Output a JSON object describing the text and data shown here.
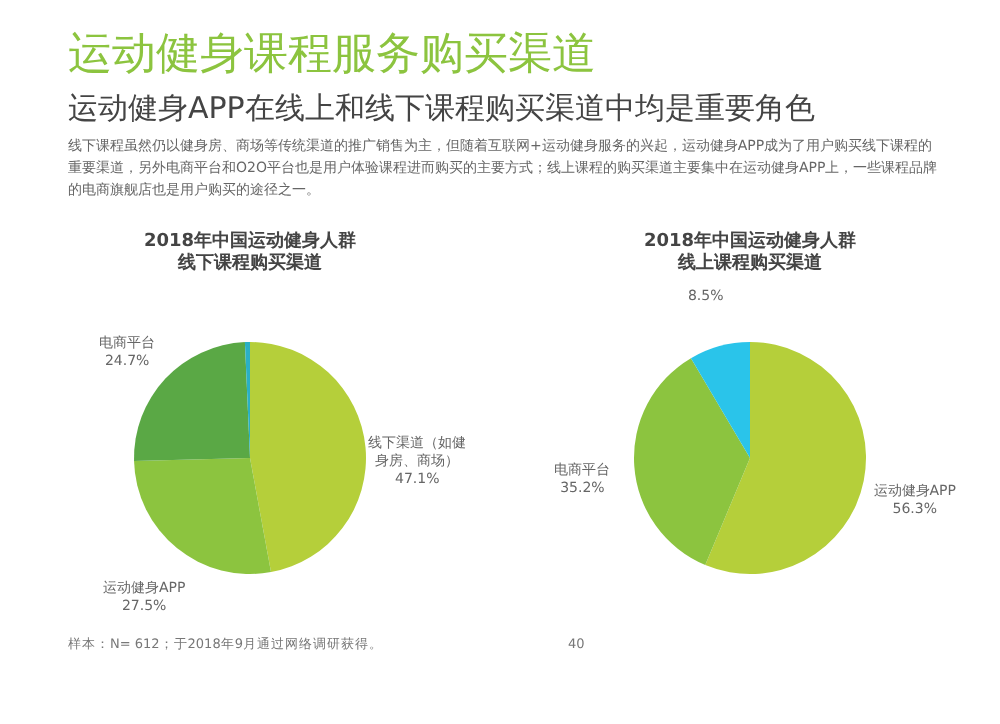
{
  "chart_data": [
    {
      "type": "other",
      "title": "运动健身课程服务购买渠道",
      "subtitle": "运动健身APP在线上和线下课程购买渠道中均是重要角色",
      "annotations": [
        "线下课程虽然仍以健身房、商场等传统渠道的推广销售为主，但随着互联网+运动健身服务的兴起，运动健身APP成为了用户购买线下课程的重要渠道，另外电商平台和O2O平台也是用户体验课程进而购买的主要方式；线上课程的购买渠道主要集中在运动健身APP上，一些课程品牌的电商旗舰店也是用户购买的途径之一。"
      ]
    },
    {
      "type": "pie",
      "title": "2018年中国运动健身人群线下课程购买渠道",
      "categories": [
        "线下渠道（如健身房、商场）",
        "运动健身APP",
        "电商平台",
        null
      ],
      "values": [
        47.1,
        27.5,
        24.7,
        0.7
      ],
      "value_labels": [
        "47.1%",
        "27.5%",
        "24.7%",
        null
      ],
      "colors": [
        "#b5cf3a",
        "#8cc43f",
        "#5aa845",
        "#2ab0c5"
      ],
      "annotations": [
        "样本：N= 612；于2018年9月通过网络调研获得。"
      ]
    },
    {
      "type": "pie",
      "title": "2018年中国运动健身人群线上课程购买渠道",
      "categories": [
        "运动健身APP",
        "电商平台",
        null
      ],
      "values": [
        56.3,
        35.2,
        8.5
      ],
      "value_labels": [
        "56.3%",
        "35.2%",
        "8.5%"
      ],
      "colors": [
        "#b5cf3a",
        "#8cc43f",
        "#2ac4ea"
      ],
      "annotations": [
        "40"
      ]
    }
  ]
}
